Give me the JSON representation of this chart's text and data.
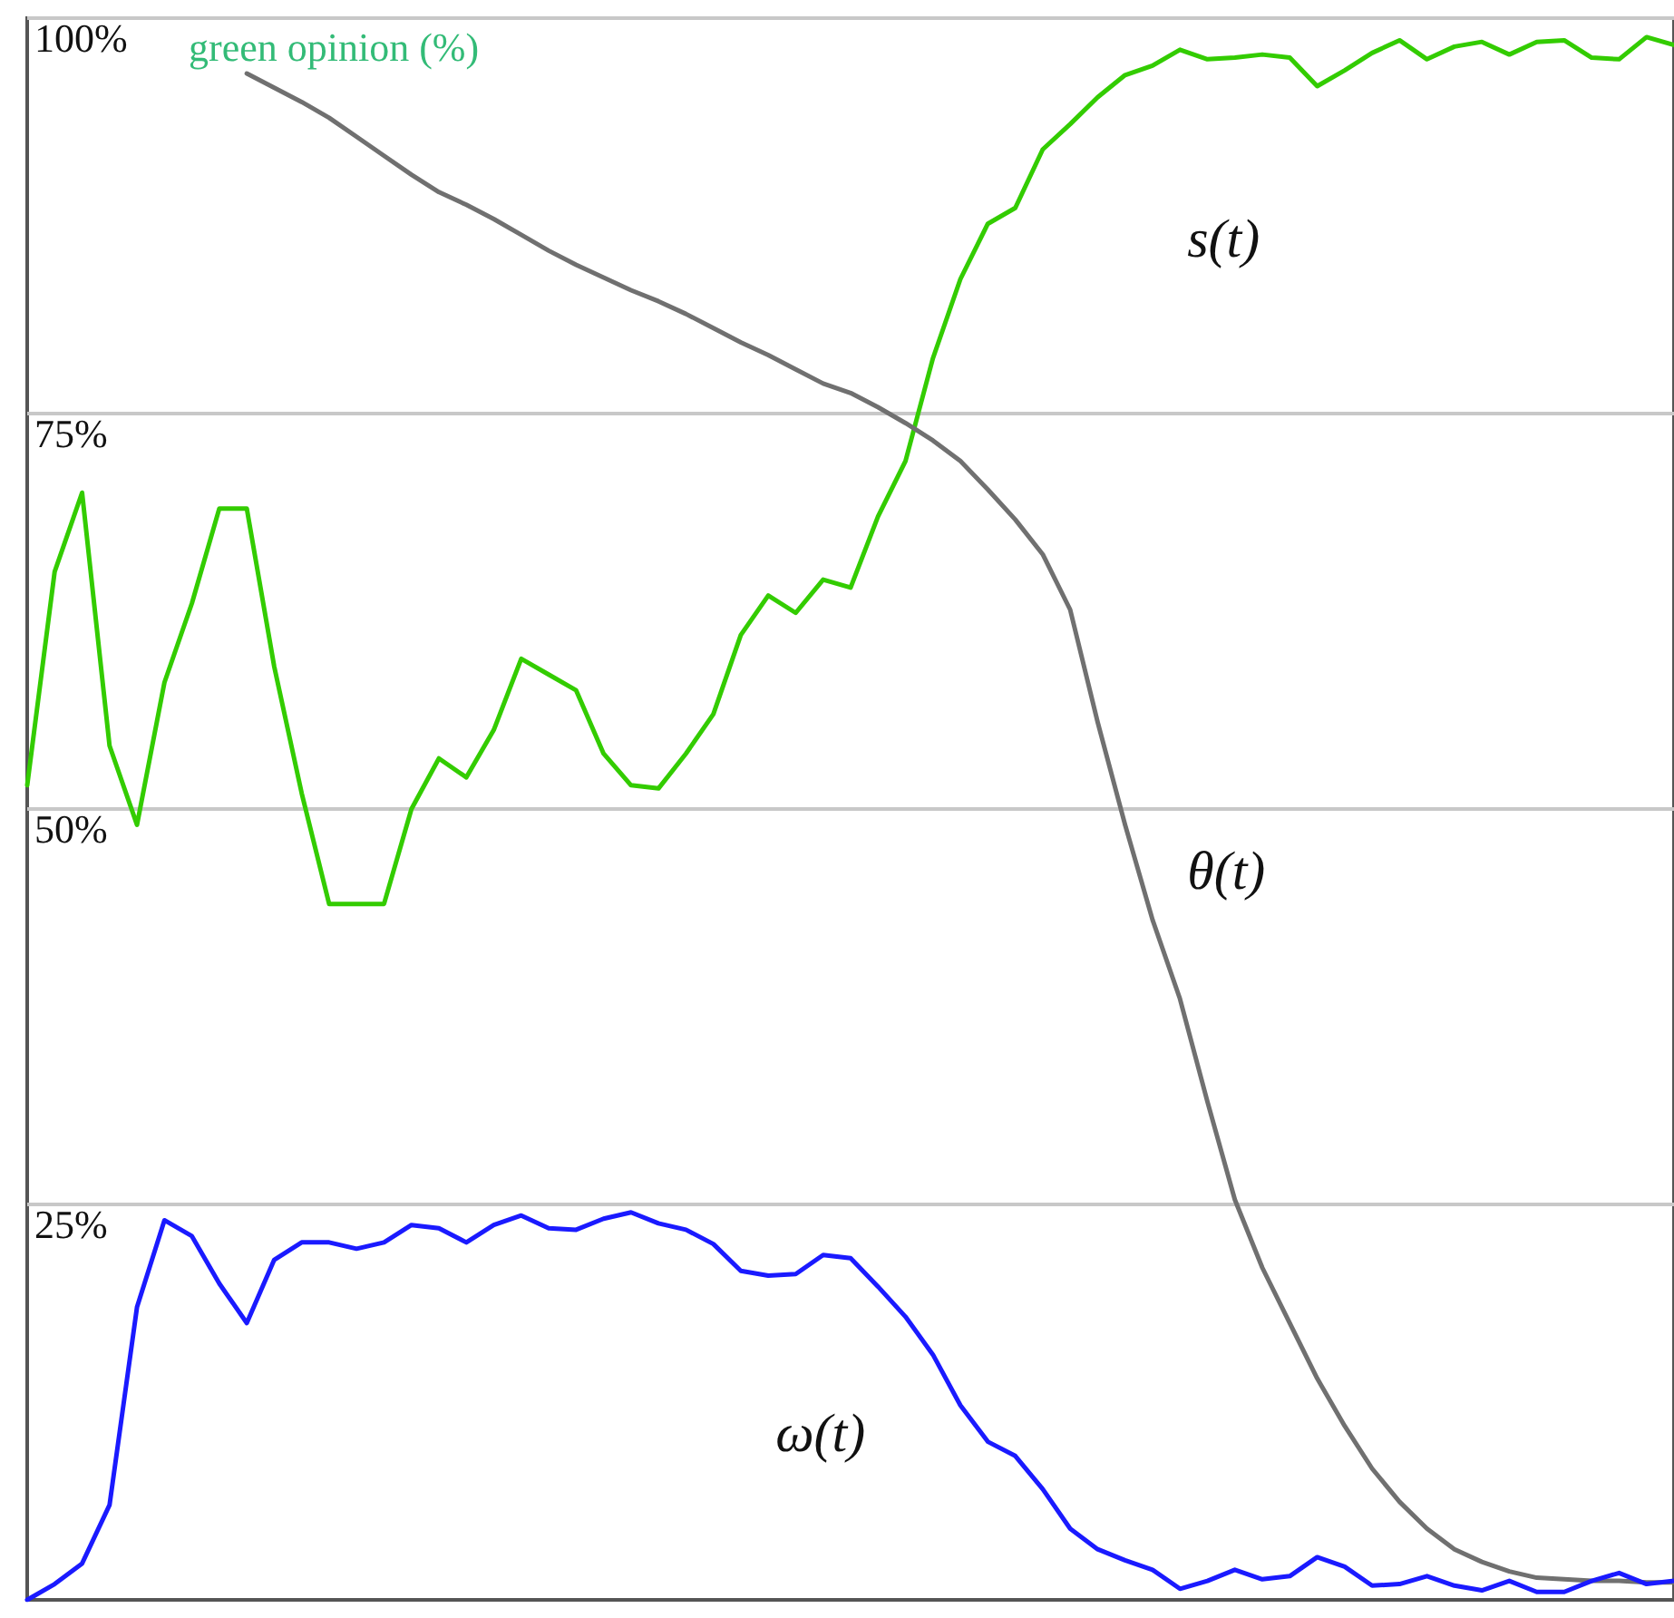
{
  "chart_data": {
    "type": "line",
    "ylabel": "green opinion (%)",
    "categories": [
      null,
      null,
      null,
      null,
      null,
      null,
      null,
      null,
      null,
      null,
      null,
      null,
      null,
      null,
      null,
      null,
      null,
      null,
      null,
      null,
      null,
      null,
      null,
      null,
      null,
      null,
      null,
      null,
      null,
      null,
      null,
      null,
      null,
      null,
      null,
      null,
      null,
      null,
      null,
      null,
      null,
      null,
      null,
      null,
      null,
      null,
      null,
      null,
      null,
      null,
      null,
      null,
      null,
      null,
      null,
      null,
      null,
      null,
      null,
      null,
      null
    ],
    "series": [
      {
        "name": "s(t)",
        "color": "#33cc00",
        "values": [
          51.5,
          65,
          70,
          54,
          49,
          58,
          63,
          69,
          69,
          59,
          51,
          44,
          44,
          44,
          50,
          53.2,
          52,
          55,
          59.5,
          58.5,
          57.5,
          53.5,
          51.5,
          51.3,
          53.5,
          56,
          61,
          63.5,
          62.4,
          64.5,
          64,
          68.5,
          72,
          78.5,
          83.5,
          87,
          88,
          91.7,
          93.3,
          95,
          96.4,
          97,
          98,
          97.4,
          97.5,
          97.7,
          97.5,
          95.7,
          96.7,
          97.8,
          98.6,
          97.4,
          98.2,
          98.5,
          97.7,
          98.5,
          98.6,
          97.5,
          97.4,
          98.8,
          98.3
        ]
      },
      {
        "name": "θ(t)",
        "color": "#707070",
        "values": [
          null,
          null,
          null,
          null,
          null,
          null,
          null,
          null,
          96.5,
          95.6,
          94.7,
          93.7,
          92.5,
          91.3,
          90.1,
          89,
          88.2,
          87.3,
          86.3,
          85.3,
          84.4,
          83.6,
          82.8,
          82.1,
          81.3,
          80.4,
          79.5,
          78.7,
          77.8,
          76.9,
          76.3,
          75.4,
          74.4,
          73.3,
          72,
          70.2,
          68.3,
          66.1,
          62.6,
          55.5,
          49,
          43,
          38,
          31.5,
          25.3,
          21,
          17.5,
          14,
          11,
          8.3,
          6.2,
          4.5,
          3.2,
          2.4,
          1.8,
          1.4,
          1.3,
          1.2,
          1.2,
          1.1,
          1.1
        ]
      },
      {
        "name": "ω(t)",
        "color": "#1a1aff",
        "values": [
          0,
          1,
          2.3,
          6,
          18.5,
          24,
          23,
          20,
          17.5,
          21.5,
          22.6,
          22.6,
          22.2,
          22.6,
          23.7,
          23.5,
          22.6,
          23.7,
          24.3,
          23.5,
          23.4,
          24.1,
          24.5,
          23.8,
          23.4,
          22.5,
          20.8,
          20.5,
          20.6,
          21.8,
          21.6,
          19.8,
          17.9,
          15.5,
          12.3,
          10,
          9.1,
          7,
          4.5,
          3.2,
          2.5,
          1.9,
          0.7,
          1.2,
          1.9,
          1.3,
          1.5,
          2.7,
          2.1,
          0.9,
          1,
          1.5,
          0.9,
          0.6,
          1.2,
          0.5,
          0.5,
          1.2,
          1.7,
          1,
          1.2
        ]
      }
    ],
    "ylim": [
      0,
      100
    ],
    "yticks": [
      {
        "value": 25,
        "label": "25%"
      },
      {
        "value": 50,
        "label": "50%"
      },
      {
        "value": 75,
        "label": "75%"
      },
      {
        "value": 100,
        "label": "100%"
      }
    ],
    "tick_labels": "y",
    "grid": "y",
    "legend": false,
    "marker": "none",
    "line_style": "solid"
  }
}
